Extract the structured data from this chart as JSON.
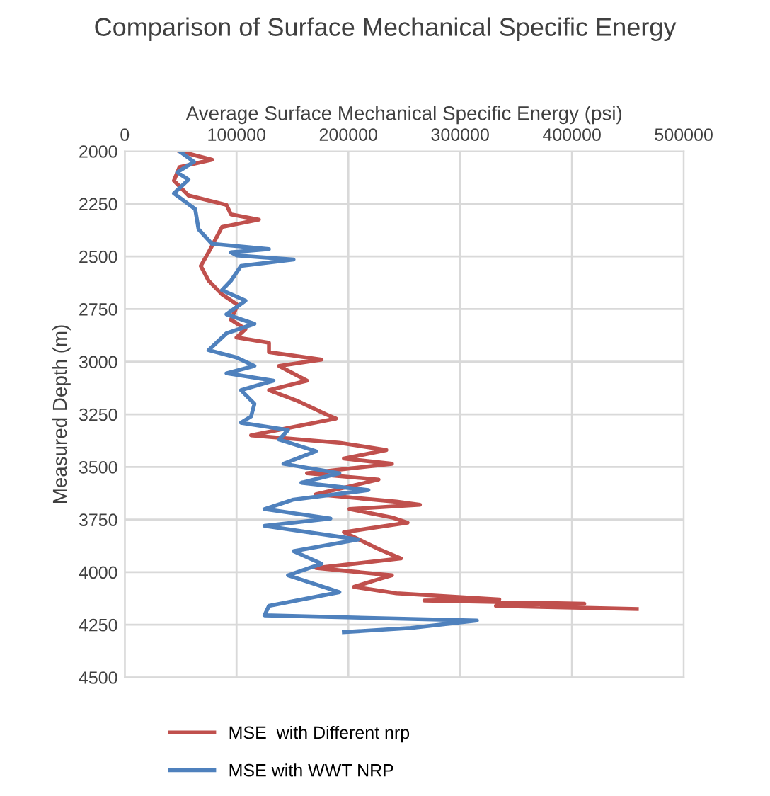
{
  "chart_data": {
    "type": "line",
    "title": "Comparison of Surface Mechanical Specific Energy",
    "xlabel": "Average Surface Mechanical Specific Energy (psi)",
    "ylabel": "Measured Depth (m)",
    "xlim": [
      0,
      500000
    ],
    "xticks": [
      0,
      100000,
      200000,
      300000,
      400000,
      500000
    ],
    "ylim": [
      4500,
      2000
    ],
    "yticks": [
      2000,
      2250,
      2500,
      2750,
      3000,
      3250,
      3500,
      3750,
      4000,
      4250,
      4500
    ],
    "grid": true,
    "legend": "bottom",
    "line_style": "solid",
    "marker": "none",
    "series": [
      {
        "name": "MSE  with Different nrp",
        "color": "#c0504d",
        "x": [
          49000,
          78000,
          49000,
          44000,
          57000,
          91000,
          95000,
          120000,
          87000,
          82000,
          75000,
          68000,
          75000,
          87000,
          101000,
          95000,
          108000,
          100000,
          129000,
          129000,
          176000,
          138000,
          163000,
          129000,
          154000,
          180000,
          189000,
          113000,
          192000,
          234000,
          196000,
          239000,
          163000,
          227000,
          171000,
          243000,
          264000,
          201000,
          239000,
          253000,
          196000,
          227000,
          247000,
          171000,
          239000,
          226000,
          205000,
          243000,
          335000,
          268000,
          411000,
          332000,
          458000
        ],
        "values": [
          2000,
          2040,
          2075,
          2140,
          2210,
          2255,
          2300,
          2325,
          2360,
          2410,
          2480,
          2545,
          2615,
          2680,
          2730,
          2800,
          2845,
          2885,
          2910,
          2955,
          2990,
          3020,
          3090,
          3135,
          3185,
          3250,
          3270,
          3350,
          3385,
          3420,
          3460,
          3485,
          3530,
          3560,
          3630,
          3665,
          3680,
          3700,
          3740,
          3765,
          3810,
          3890,
          3935,
          3980,
          4015,
          4035,
          4070,
          4100,
          4130,
          4135,
          4150,
          4160,
          4175
        ]
      },
      {
        "name": "MSE with WWT NRP",
        "color": "#4f81bd",
        "x": [
          49000,
          62000,
          47000,
          57000,
          44000,
          63000,
          66000,
          78000,
          129000,
          95000,
          100000,
          151000,
          104000,
          95000,
          87000,
          108000,
          91000,
          116000,
          91000,
          75000,
          100000,
          116000,
          91000,
          133000,
          104000,
          116000,
          113000,
          104000,
          146000,
          138000,
          171000,
          142000,
          192000,
          158000,
          218000,
          151000,
          125000,
          184000,
          125000,
          209000,
          151000,
          176000,
          146000,
          192000,
          129000,
          125000,
          315000,
          256000,
          196000
        ],
        "values": [
          2000,
          2050,
          2100,
          2135,
          2200,
          2275,
          2370,
          2440,
          2465,
          2480,
          2495,
          2515,
          2545,
          2615,
          2660,
          2710,
          2775,
          2820,
          2865,
          2945,
          2980,
          3020,
          3055,
          3090,
          3135,
          3200,
          3260,
          3290,
          3325,
          3370,
          3425,
          3485,
          3530,
          3575,
          3610,
          3655,
          3700,
          3745,
          3780,
          3845,
          3900,
          3960,
          4015,
          4095,
          4160,
          4205,
          4230,
          4265,
          4285
        ]
      }
    ]
  }
}
